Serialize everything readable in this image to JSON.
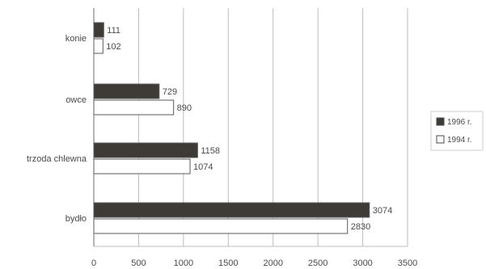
{
  "chart_data": {
    "type": "bar",
    "orientation": "horizontal",
    "categories": [
      "konie",
      "owce",
      "trzoda chlewna",
      "bydło"
    ],
    "series": [
      {
        "name": "1996 r.",
        "values": [
          111,
          729,
          1158,
          3074
        ],
        "color": "#3e3a35"
      },
      {
        "name": "1994 r.",
        "values": [
          102,
          890,
          1074,
          2830
        ],
        "color": "#ffffff"
      }
    ],
    "xlim": [
      0,
      3500
    ],
    "xticks": [
      0,
      500,
      1000,
      1500,
      2000,
      2500,
      3000,
      3500
    ],
    "grid": true,
    "legend_position": "right",
    "title": "",
    "xlabel": "",
    "ylabel": ""
  }
}
